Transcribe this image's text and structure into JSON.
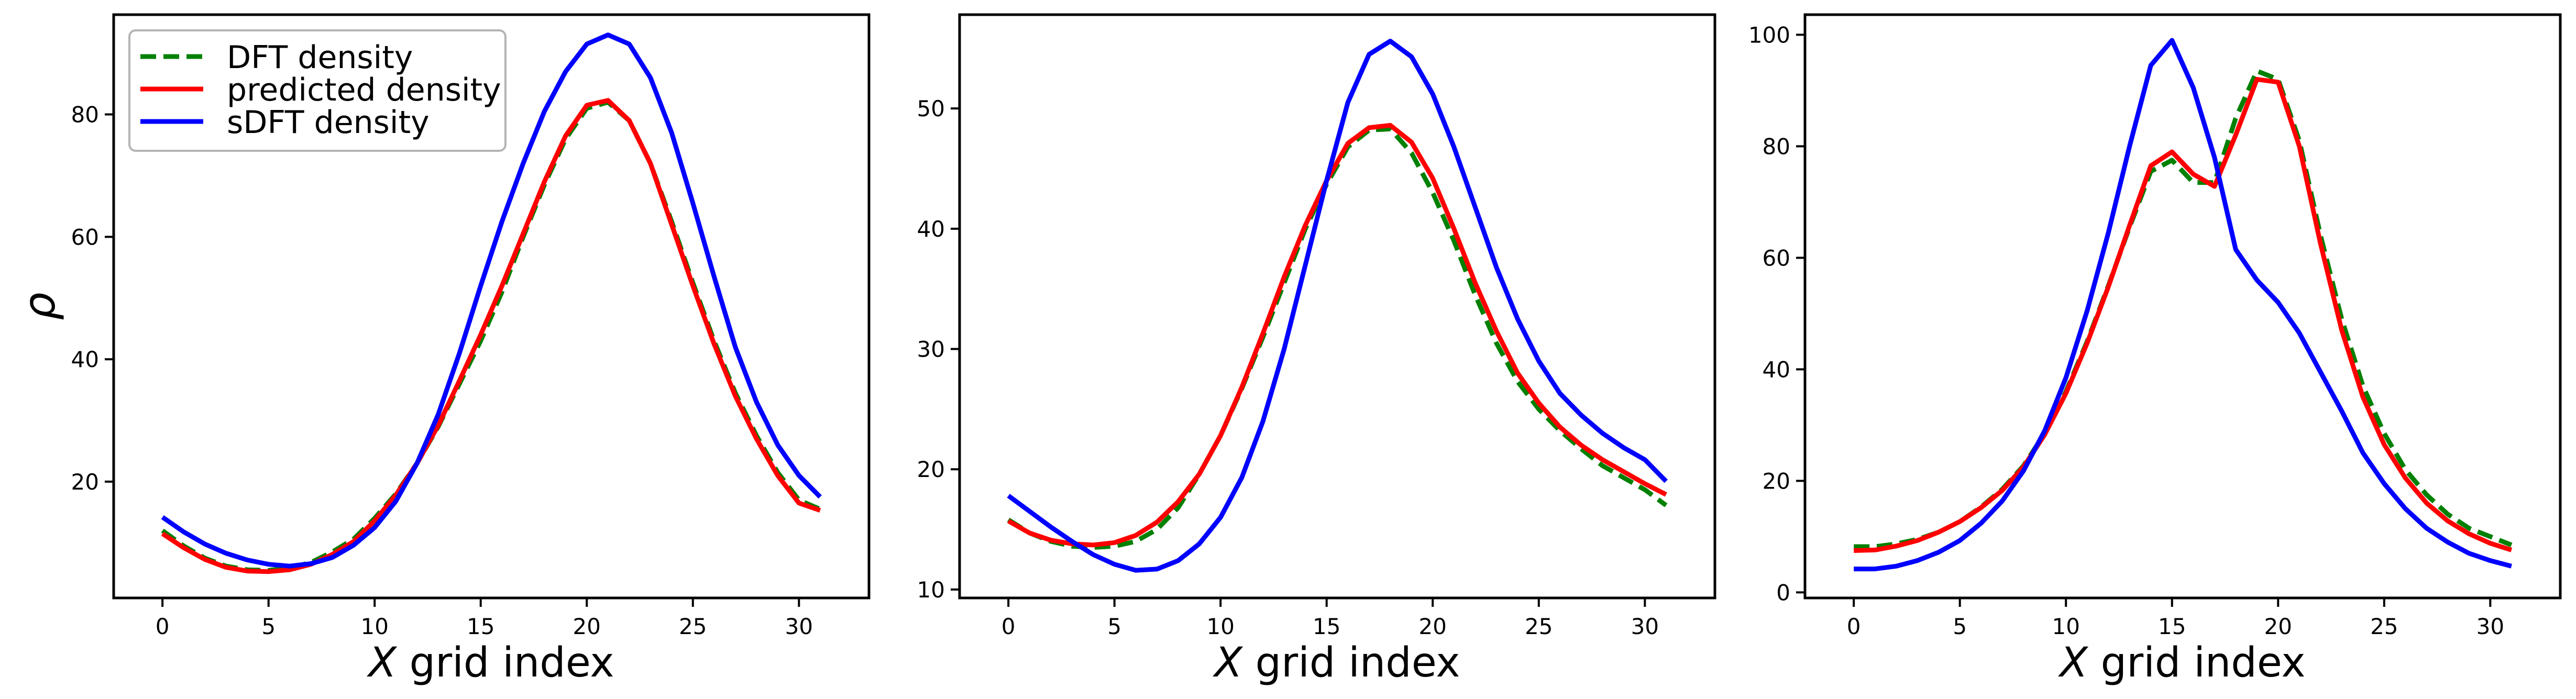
{
  "legend": {
    "placement": "top-left",
    "entries": [
      {
        "label": "DFT density",
        "color": "#008000",
        "dash": true
      },
      {
        "label": "predicted density",
        "color": "#ff0000",
        "dash": false
      },
      {
        "label": "sDFT density",
        "color": "#0000ff",
        "dash": false
      }
    ]
  },
  "chart_data": [
    {
      "type": "line",
      "xlabel": "X grid index",
      "ylabel": "ρ",
      "xlim": [
        -2.3,
        33.3
      ],
      "ylim": [
        1.0,
        96.3
      ],
      "xticks": [
        0,
        5,
        10,
        15,
        20,
        25,
        30
      ],
      "yticks": [
        20,
        40,
        60,
        80
      ],
      "grid": false,
      "legend": "top-left",
      "x": [
        0,
        1,
        2,
        3,
        4,
        5,
        6,
        7,
        8,
        9,
        10,
        11,
        12,
        13,
        14,
        15,
        16,
        17,
        18,
        19,
        20,
        21,
        22,
        23,
        24,
        25,
        26,
        27,
        28,
        29,
        30,
        31
      ],
      "series": [
        {
          "name": "DFT density",
          "color": "#008000",
          "dash": true,
          "values": [
            12.0,
            9.5,
            7.5,
            6.2,
            5.6,
            5.5,
            5.9,
            6.8,
            8.5,
            10.6,
            14.0,
            18.0,
            23.0,
            29.0,
            36.0,
            43.0,
            51.0,
            60.0,
            68.5,
            76.0,
            81.0,
            82.0,
            79.0,
            72.0,
            62.5,
            52.5,
            43.0,
            34.5,
            27.5,
            21.5,
            17.0,
            15.5
          ]
        },
        {
          "name": "predicted density",
          "color": "#ff0000",
          "dash": false,
          "values": [
            11.5,
            9.2,
            7.3,
            6.0,
            5.4,
            5.3,
            5.6,
            6.5,
            8.1,
            10.2,
            13.6,
            17.8,
            23.0,
            29.2,
            36.5,
            44.0,
            52.0,
            60.5,
            69.0,
            76.5,
            81.5,
            82.3,
            79.0,
            72.0,
            62.0,
            52.0,
            42.5,
            34.0,
            27.0,
            21.0,
            16.5,
            15.3
          ]
        },
        {
          "name": "sDFT density",
          "color": "#0000ff",
          "dash": false,
          "values": [
            14.2,
            11.8,
            9.8,
            8.3,
            7.2,
            6.5,
            6.2,
            6.6,
            7.6,
            9.6,
            12.5,
            16.8,
            23.0,
            31.0,
            41.0,
            52.0,
            62.5,
            72.0,
            80.5,
            87.0,
            91.5,
            93.0,
            91.5,
            86.0,
            77.0,
            65.5,
            53.5,
            42.0,
            33.0,
            26.0,
            21.0,
            17.5
          ]
        }
      ]
    },
    {
      "type": "line",
      "xlabel": "X grid index",
      "ylabel": "",
      "xlim": [
        -2.3,
        33.3
      ],
      "ylim": [
        9.3,
        57.8
      ],
      "xticks": [
        0,
        5,
        10,
        15,
        20,
        25,
        30
      ],
      "yticks": [
        10,
        20,
        30,
        40,
        50
      ],
      "grid": false,
      "x": [
        0,
        1,
        2,
        3,
        4,
        5,
        6,
        7,
        8,
        9,
        10,
        11,
        12,
        13,
        14,
        15,
        16,
        17,
        18,
        19,
        20,
        21,
        22,
        23,
        24,
        25,
        26,
        27,
        28,
        29,
        30,
        31
      ],
      "series": [
        {
          "name": "DFT density",
          "color": "#008000",
          "dash": true,
          "values": [
            15.8,
            14.7,
            14.0,
            13.6,
            13.5,
            13.6,
            14.0,
            15.0,
            16.8,
            19.6,
            22.8,
            26.7,
            31.0,
            35.5,
            40.0,
            43.7,
            46.8,
            48.2,
            48.3,
            46.3,
            43.0,
            39.0,
            34.5,
            30.5,
            27.3,
            25.0,
            23.2,
            21.7,
            20.3,
            19.3,
            18.3,
            17.0
          ]
        },
        {
          "name": "predicted density",
          "color": "#ff0000",
          "dash": false,
          "values": [
            15.7,
            14.7,
            14.1,
            13.8,
            13.7,
            13.9,
            14.5,
            15.6,
            17.3,
            19.6,
            22.8,
            26.8,
            31.3,
            36.0,
            40.3,
            44.0,
            47.1,
            48.4,
            48.6,
            47.2,
            44.2,
            40.0,
            35.5,
            31.5,
            28.0,
            25.5,
            23.5,
            22.0,
            20.8,
            19.8,
            18.8,
            17.9
          ]
        },
        {
          "name": "sDFT density",
          "color": "#0000ff",
          "dash": false,
          "values": [
            17.8,
            16.5,
            15.2,
            14.0,
            12.9,
            12.1,
            11.6,
            11.7,
            12.4,
            13.8,
            16.0,
            19.3,
            24.0,
            30.0,
            37.0,
            44.0,
            50.5,
            54.5,
            55.6,
            54.3,
            51.2,
            46.8,
            41.8,
            36.8,
            32.5,
            29.0,
            26.3,
            24.5,
            23.0,
            21.8,
            20.8,
            19.0
          ]
        }
      ]
    },
    {
      "type": "line",
      "xlabel": "X grid index",
      "ylabel": "",
      "xlim": [
        -2.3,
        33.3
      ],
      "ylim": [
        -1.0,
        103.6
      ],
      "xticks": [
        0,
        5,
        10,
        15,
        20,
        25,
        30
      ],
      "yticks": [
        0,
        20,
        40,
        60,
        80,
        100
      ],
      "grid": false,
      "x": [
        0,
        1,
        2,
        3,
        4,
        5,
        6,
        7,
        8,
        9,
        10,
        11,
        12,
        13,
        14,
        15,
        16,
        17,
        18,
        19,
        20,
        21,
        22,
        23,
        24,
        25,
        26,
        27,
        28,
        29,
        30,
        31
      ],
      "series": [
        {
          "name": "DFT density",
          "color": "#008000",
          "dash": true,
          "values": [
            8.2,
            8.2,
            8.7,
            9.5,
            10.8,
            12.7,
            15.3,
            18.5,
            22.7,
            28.5,
            36.0,
            45.0,
            55.0,
            65.5,
            75.5,
            77.5,
            73.5,
            73.5,
            85.0,
            93.5,
            92.0,
            81.0,
            64.0,
            49.0,
            37.0,
            28.5,
            22.0,
            17.5,
            14.0,
            11.5,
            10.0,
            8.5
          ]
        },
        {
          "name": "predicted density",
          "color": "#ff0000",
          "dash": false,
          "values": [
            7.5,
            7.6,
            8.3,
            9.3,
            10.8,
            12.7,
            15.2,
            18.3,
            22.5,
            28.3,
            35.7,
            44.7,
            54.8,
            65.8,
            76.5,
            79.0,
            75.0,
            72.8,
            82.0,
            92.0,
            91.5,
            80.0,
            62.5,
            47.0,
            35.0,
            26.5,
            20.5,
            16.0,
            12.8,
            10.5,
            8.8,
            7.6
          ]
        },
        {
          "name": "sDFT density",
          "color": "#0000ff",
          "dash": false,
          "values": [
            4.2,
            4.2,
            4.7,
            5.7,
            7.2,
            9.3,
            12.4,
            16.4,
            21.8,
            29.0,
            38.5,
            50.5,
            64.5,
            80.0,
            94.5,
            99.0,
            90.5,
            78.0,
            61.5,
            56.0,
            52.0,
            46.5,
            39.5,
            32.5,
            25.0,
            19.5,
            15.0,
            11.5,
            9.0,
            7.0,
            5.7,
            4.7
          ]
        }
      ]
    }
  ]
}
